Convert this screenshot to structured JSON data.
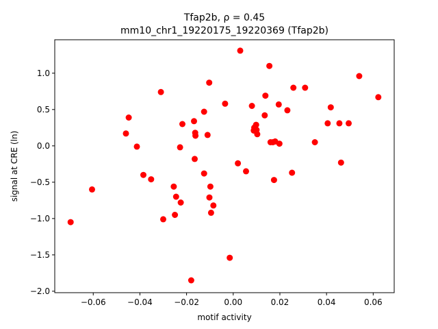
{
  "chart_data": {
    "type": "scatter",
    "title_line1": "Tfap2b, ρ = 0.45",
    "title_line2": "mm10_chr1_19220175_19220369 (Tfap2b)",
    "xlabel": "motif activity",
    "ylabel": "signal at CRE (ln)",
    "xlim": [
      -0.0765,
      0.069
    ],
    "ylim": [
      -2.02,
      1.46
    ],
    "xticks": [
      -0.06,
      -0.04,
      -0.02,
      0.0,
      0.02,
      0.04,
      0.06
    ],
    "xtick_labels": [
      "−0.06",
      "−0.04",
      "−0.02",
      "0.00",
      "0.02",
      "0.04",
      "0.06"
    ],
    "yticks": [
      -2.0,
      -1.5,
      -1.0,
      -0.5,
      0.0,
      0.5,
      1.0
    ],
    "ytick_labels": [
      "−2.0",
      "−1.5",
      "−1.0",
      "−0.5",
      "0.0",
      "0.5",
      "1.0"
    ],
    "grid": false,
    "marker_color": "#ff0000",
    "points": [
      {
        "x": -0.0697,
        "y": -1.05
      },
      {
        "x": -0.0605,
        "y": -0.6
      },
      {
        "x": -0.046,
        "y": 0.17
      },
      {
        "x": -0.0448,
        "y": 0.39
      },
      {
        "x": -0.0413,
        "y": -0.01
      },
      {
        "x": -0.0385,
        "y": -0.4
      },
      {
        "x": -0.0352,
        "y": -0.46
      },
      {
        "x": -0.031,
        "y": 0.74
      },
      {
        "x": -0.03,
        "y": -1.01
      },
      {
        "x": -0.0255,
        "y": -0.56
      },
      {
        "x": -0.025,
        "y": -0.95
      },
      {
        "x": -0.0245,
        "y": -0.7
      },
      {
        "x": -0.0228,
        "y": -0.02
      },
      {
        "x": -0.0225,
        "y": -0.78
      },
      {
        "x": -0.0218,
        "y": 0.3
      },
      {
        "x": -0.018,
        "y": -1.85
      },
      {
        "x": -0.0168,
        "y": 0.34
      },
      {
        "x": -0.0165,
        "y": -0.18
      },
      {
        "x": -0.0163,
        "y": 0.18
      },
      {
        "x": -0.0162,
        "y": 0.14
      },
      {
        "x": -0.0125,
        "y": 0.47
      },
      {
        "x": -0.0125,
        "y": -0.38
      },
      {
        "x": -0.011,
        "y": 0.15
      },
      {
        "x": -0.0103,
        "y": 0.87
      },
      {
        "x": -0.0102,
        "y": -0.71
      },
      {
        "x": -0.0098,
        "y": -0.56
      },
      {
        "x": -0.0095,
        "y": -0.92
      },
      {
        "x": -0.0085,
        "y": -0.82
      },
      {
        "x": -0.0035,
        "y": 0.58
      },
      {
        "x": -0.0015,
        "y": -1.54
      },
      {
        "x": 0.002,
        "y": -0.24
      },
      {
        "x": 0.003,
        "y": 1.31
      },
      {
        "x": 0.0055,
        "y": -0.35
      },
      {
        "x": 0.008,
        "y": 0.55
      },
      {
        "x": 0.0088,
        "y": 0.21
      },
      {
        "x": 0.009,
        "y": 0.25
      },
      {
        "x": 0.0098,
        "y": 0.29
      },
      {
        "x": 0.01,
        "y": 0.22
      },
      {
        "x": 0.0103,
        "y": 0.16
      },
      {
        "x": 0.0135,
        "y": 0.42
      },
      {
        "x": 0.0138,
        "y": 0.69
      },
      {
        "x": 0.0155,
        "y": 1.1
      },
      {
        "x": 0.016,
        "y": 0.05
      },
      {
        "x": 0.017,
        "y": 0.05
      },
      {
        "x": 0.0175,
        "y": -0.47
      },
      {
        "x": 0.018,
        "y": 0.06
      },
      {
        "x": 0.0195,
        "y": 0.57
      },
      {
        "x": 0.0198,
        "y": 0.03
      },
      {
        "x": 0.0232,
        "y": 0.49
      },
      {
        "x": 0.0252,
        "y": -0.37
      },
      {
        "x": 0.0258,
        "y": 0.8
      },
      {
        "x": 0.0308,
        "y": 0.8
      },
      {
        "x": 0.035,
        "y": 0.05
      },
      {
        "x": 0.0405,
        "y": 0.31
      },
      {
        "x": 0.0418,
        "y": 0.53
      },
      {
        "x": 0.0455,
        "y": 0.31
      },
      {
        "x": 0.0462,
        "y": -0.23
      },
      {
        "x": 0.0495,
        "y": 0.31
      },
      {
        "x": 0.054,
        "y": 0.96
      },
      {
        "x": 0.0622,
        "y": 0.67
      }
    ]
  }
}
